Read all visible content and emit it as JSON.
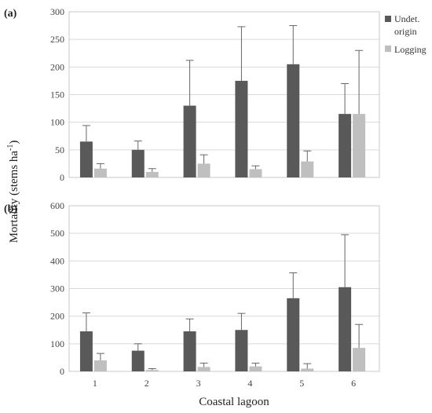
{
  "figure": {
    "ylabel": "Mortality (stems ha",
    "ylabel_sup": "-1",
    "ylabel_end": ")",
    "xlabel": "Coastal lagoon"
  },
  "colors": {
    "undet": "#595959",
    "logging": "#bfbfbf",
    "error": "#666666",
    "frame": "#c8c8c8",
    "grid": "#d9d9d9"
  },
  "legend": {
    "items": [
      {
        "lines": [
          "Undet.",
          "origin"
        ],
        "color": "#595959"
      },
      {
        "lines": [
          "Logging"
        ],
        "color": "#bfbfbf"
      }
    ]
  },
  "chart_data": [
    {
      "type": "bar",
      "panel": "(a)",
      "categories": [
        "1",
        "2",
        "3",
        "4",
        "5",
        "6"
      ],
      "ylim": [
        0,
        300
      ],
      "yticks": [
        0,
        50,
        100,
        150,
        200,
        250,
        300
      ],
      "show_xticklabels": false,
      "series": [
        {
          "name": "Undet. origin",
          "values": [
            65,
            50,
            130,
            175,
            205,
            115
          ],
          "error_upper": [
            94,
            66,
            212,
            273,
            275,
            170
          ]
        },
        {
          "name": "Logging",
          "values": [
            16,
            10,
            25,
            15,
            29,
            115
          ],
          "error_upper": [
            25,
            16,
            41,
            21,
            48,
            230
          ]
        }
      ],
      "xlabel": "",
      "grid": true,
      "legend_position": "right"
    },
    {
      "type": "bar",
      "panel": "(b)",
      "categories": [
        "1",
        "2",
        "3",
        "4",
        "5",
        "6"
      ],
      "ylim": [
        0,
        600
      ],
      "yticks": [
        0,
        100,
        200,
        300,
        400,
        500,
        600
      ],
      "show_xticklabels": true,
      "series": [
        {
          "name": "Undet. origin",
          "values": [
            145,
            75,
            145,
            150,
            265,
            305
          ],
          "error_upper": [
            212,
            100,
            190,
            210,
            357,
            495
          ]
        },
        {
          "name": "Logging",
          "values": [
            40,
            5,
            16,
            18,
            10,
            85
          ],
          "error_upper": [
            65,
            10,
            30,
            30,
            28,
            170
          ]
        }
      ],
      "xlabel": "Coastal lagoon",
      "grid": true
    }
  ]
}
